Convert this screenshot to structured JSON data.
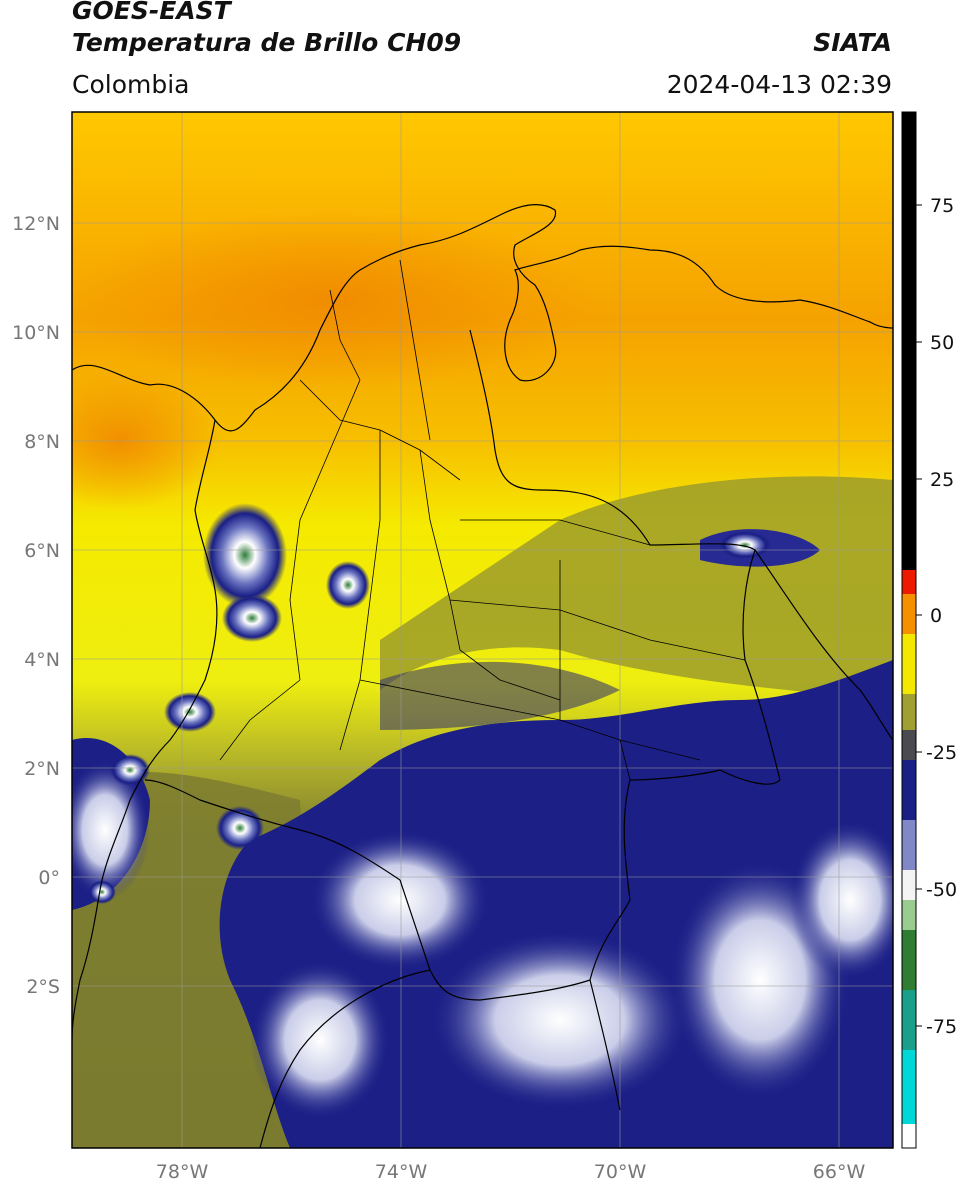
{
  "header": {
    "satellite": "GOES-EAST",
    "product": "Temperatura de Brillo CH09",
    "organization": "SIATA",
    "region": "Colombia",
    "timestamp": "2024-04-13 02:39"
  },
  "map": {
    "lon_range": [
      -80,
      -65
    ],
    "lat_range": [
      -5,
      14
    ],
    "lon_ticks": [
      "78°W",
      "74°W",
      "70°W",
      "66°W"
    ],
    "lat_ticks": [
      "12°N",
      "10°N",
      "8°N",
      "6°N",
      "4°N",
      "2°N",
      "0°",
      "2°S"
    ],
    "grid": true,
    "colors": {
      "warm_orange": "#f5a000",
      "yellow": "#f5f000",
      "olive": "#9a9a2a",
      "navy": "#1c1f86",
      "white": "#ffffff",
      "green": "#3f8a3a"
    }
  },
  "colorbar": {
    "ticks": [
      "75",
      "50",
      "25",
      "0",
      "-25",
      "-50",
      "-75"
    ],
    "colors": [
      "#ffffff",
      "#00e0e0",
      "#1aa08a",
      "#2e7d32",
      "#ffffff",
      "#5a66b8",
      "#1a1f86",
      "#555544",
      "#aaaa22",
      "#f5f000",
      "#f5a000",
      "#ff0000",
      "#000000"
    ]
  }
}
